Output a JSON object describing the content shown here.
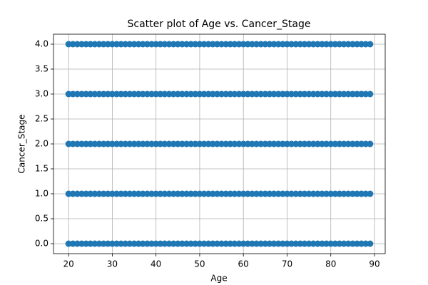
{
  "chart_data": {
    "type": "scatter",
    "title": "Scatter plot of Age vs. Cancer_Stage",
    "x_label": "Age",
    "y_label": "Cancer_Stage",
    "color": "#1f77b4",
    "grid": true,
    "xlim": [
      16.55,
      92.45
    ],
    "ylim": [
      -0.2,
      4.2
    ],
    "xticks": [
      20,
      30,
      40,
      50,
      60,
      70,
      80,
      90
    ],
    "yticks": [
      {
        "value": 0,
        "label": "0.0"
      },
      0.5,
      {
        "value": 1,
        "label": "1.0"
      },
      1.5,
      {
        "value": 2,
        "label": "2.0"
      },
      2.5,
      {
        "value": 3,
        "label": "3.0"
      },
      3.5,
      {
        "value": 4,
        "label": "4.0"
      }
    ],
    "x": [
      20,
      21,
      22,
      23,
      24,
      25,
      26,
      27,
      28,
      29,
      30,
      31,
      32,
      33,
      34,
      35,
      36,
      37,
      38,
      39,
      40,
      41,
      42,
      43,
      44,
      45,
      46,
      47,
      48,
      49,
      50,
      51,
      52,
      53,
      54,
      55,
      56,
      57,
      58,
      59,
      60,
      61,
      62,
      63,
      64,
      65,
      66,
      67,
      68,
      69,
      70,
      71,
      72,
      73,
      74,
      75,
      76,
      77,
      78,
      79,
      80,
      81,
      82,
      83,
      84,
      85,
      86,
      87,
      88,
      89,
      20,
      21,
      22,
      23,
      24,
      25,
      26,
      27,
      28,
      29,
      30,
      31,
      32,
      33,
      34,
      35,
      36,
      37,
      38,
      39,
      40,
      41,
      42,
      43,
      44,
      45,
      46,
      47,
      48,
      49,
      50,
      51,
      52,
      53,
      54,
      55,
      56,
      57,
      58,
      59,
      60,
      61,
      62,
      63,
      64,
      65,
      66,
      67,
      68,
      69,
      70,
      71,
      72,
      73,
      74,
      75,
      76,
      77,
      78,
      79,
      80,
      81,
      82,
      83,
      84,
      85,
      86,
      87,
      88,
      89,
      20,
      21,
      22,
      23,
      24,
      25,
      26,
      27,
      28,
      29,
      30,
      31,
      32,
      33,
      34,
      35,
      36,
      37,
      38,
      39,
      40,
      41,
      42,
      43,
      44,
      45,
      46,
      47,
      48,
      49,
      50,
      51,
      52,
      53,
      54,
      55,
      56,
      57,
      58,
      59,
      60,
      61,
      62,
      63,
      64,
      65,
      66,
      67,
      68,
      69,
      70,
      71,
      72,
      73,
      74,
      75,
      76,
      77,
      78,
      79,
      80,
      81,
      82,
      83,
      84,
      85,
      86,
      87,
      88,
      89,
      20,
      21,
      22,
      23,
      24,
      25,
      26,
      27,
      28,
      29,
      30,
      31,
      32,
      33,
      34,
      35,
      36,
      37,
      38,
      39,
      40,
      41,
      42,
      43,
      44,
      45,
      46,
      47,
      48,
      49,
      50,
      51,
      52,
      53,
      54,
      55,
      56,
      57,
      58,
      59,
      60,
      61,
      62,
      63,
      64,
      65,
      66,
      67,
      68,
      69,
      70,
      71,
      72,
      73,
      74,
      75,
      76,
      77,
      78,
      79,
      80,
      81,
      82,
      83,
      84,
      85,
      86,
      87,
      88,
      89,
      20,
      21,
      22,
      23,
      24,
      25,
      26,
      27,
      28,
      29,
      30,
      31,
      32,
      33,
      34,
      35,
      36,
      37,
      38,
      39,
      40,
      41,
      42,
      43,
      44,
      45,
      46,
      47,
      48,
      49,
      50,
      51,
      52,
      53,
      54,
      55,
      56,
      57,
      58,
      59,
      60,
      61,
      62,
      63,
      64,
      65,
      66,
      67,
      68,
      69,
      70,
      71,
      72,
      73,
      74,
      75,
      76,
      77,
      78,
      79,
      80,
      81,
      82,
      83,
      84,
      85,
      86,
      87,
      88,
      89
    ],
    "values": [
      0,
      0,
      0,
      0,
      0,
      0,
      0,
      0,
      0,
      0,
      0,
      0,
      0,
      0,
      0,
      0,
      0,
      0,
      0,
      0,
      0,
      0,
      0,
      0,
      0,
      0,
      0,
      0,
      0,
      0,
      0,
      0,
      0,
      0,
      0,
      0,
      0,
      0,
      0,
      0,
      0,
      0,
      0,
      0,
      0,
      0,
      0,
      0,
      0,
      0,
      0,
      0,
      0,
      0,
      0,
      0,
      0,
      0,
      0,
      0,
      0,
      0,
      0,
      0,
      0,
      0,
      0,
      0,
      0,
      0,
      1,
      1,
      1,
      1,
      1,
      1,
      1,
      1,
      1,
      1,
      1,
      1,
      1,
      1,
      1,
      1,
      1,
      1,
      1,
      1,
      1,
      1,
      1,
      1,
      1,
      1,
      1,
      1,
      1,
      1,
      1,
      1,
      1,
      1,
      1,
      1,
      1,
      1,
      1,
      1,
      1,
      1,
      1,
      1,
      1,
      1,
      1,
      1,
      1,
      1,
      1,
      1,
      1,
      1,
      1,
      1,
      1,
      1,
      1,
      1,
      1,
      1,
      1,
      1,
      1,
      1,
      1,
      1,
      1,
      1,
      2,
      2,
      2,
      2,
      2,
      2,
      2,
      2,
      2,
      2,
      2,
      2,
      2,
      2,
      2,
      2,
      2,
      2,
      2,
      2,
      2,
      2,
      2,
      2,
      2,
      2,
      2,
      2,
      2,
      2,
      2,
      2,
      2,
      2,
      2,
      2,
      2,
      2,
      2,
      2,
      2,
      2,
      2,
      2,
      2,
      2,
      2,
      2,
      2,
      2,
      2,
      2,
      2,
      2,
      2,
      2,
      2,
      2,
      2,
      2,
      2,
      2,
      2,
      2,
      2,
      2,
      2,
      2,
      2,
      2,
      3,
      3,
      3,
      3,
      3,
      3,
      3,
      3,
      3,
      3,
      3,
      3,
      3,
      3,
      3,
      3,
      3,
      3,
      3,
      3,
      3,
      3,
      3,
      3,
      3,
      3,
      3,
      3,
      3,
      3,
      3,
      3,
      3,
      3,
      3,
      3,
      3,
      3,
      3,
      3,
      3,
      3,
      3,
      3,
      3,
      3,
      3,
      3,
      3,
      3,
      3,
      3,
      3,
      3,
      3,
      3,
      3,
      3,
      3,
      3,
      3,
      3,
      3,
      3,
      3,
      3,
      3,
      3,
      3,
      3,
      4,
      4,
      4,
      4,
      4,
      4,
      4,
      4,
      4,
      4,
      4,
      4,
      4,
      4,
      4,
      4,
      4,
      4,
      4,
      4,
      4,
      4,
      4,
      4,
      4,
      4,
      4,
      4,
      4,
      4,
      4,
      4,
      4,
      4,
      4,
      4,
      4,
      4,
      4,
      4,
      4,
      4,
      4,
      4,
      4,
      4,
      4,
      4,
      4,
      4,
      4,
      4,
      4,
      4,
      4,
      4,
      4,
      4,
      4,
      4,
      4,
      4,
      4,
      4,
      4,
      4,
      4,
      4,
      4,
      4
    ]
  }
}
